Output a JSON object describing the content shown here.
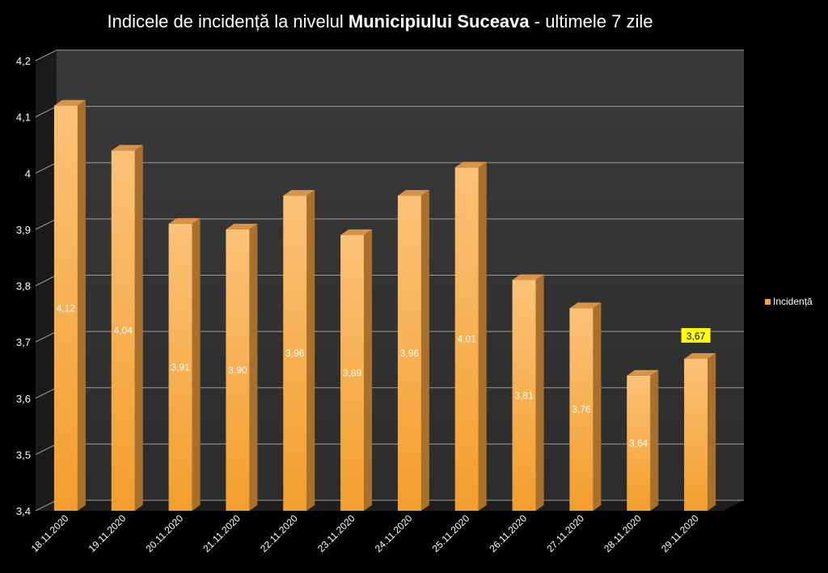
{
  "title": {
    "prefix": "Indicele de incidență la nivelul ",
    "bold": "Municipiului Suceava",
    "suffix": " - ultimele 7 zile"
  },
  "legend": {
    "label": "Incidență"
  },
  "colors": {
    "background": "#000000",
    "plot_back": "#333333",
    "bar_front": "#f8a73a",
    "bar_front_light": "#fcc278",
    "bar_side": "#a9702c",
    "bar_top": "#d79447",
    "highlight_label_bg": "#ffff00",
    "gridline": "#9a9a9a"
  },
  "chart_data": {
    "type": "bar",
    "title": "Indicele de incidență la nivelul Municipiului Suceava - ultimele 7 zile",
    "categories": [
      "18.11.2020",
      "19.11.2020",
      "20.11.2020",
      "21.11.2020",
      "22.11.2020",
      "23.11.2020",
      "24.11.2020",
      "25.11.2020",
      "26.11.2020",
      "27.11.2020",
      "28.11.2020",
      "29.11.2020"
    ],
    "series": [
      {
        "name": "Incidență",
        "values": [
          4.12,
          4.04,
          3.91,
          3.9,
          3.96,
          3.89,
          3.96,
          4.01,
          3.81,
          3.76,
          3.64,
          3.67
        ]
      }
    ],
    "value_labels": [
      "4,12",
      "4,04",
      "3,91",
      "3,90",
      "3,96",
      "3,89",
      "3,96",
      "4,01",
      "3,81",
      "3,76",
      "3,64",
      "3,67"
    ],
    "highlighted_index": 11,
    "ylim": [
      3.4,
      4.2
    ],
    "yticks": [
      3.4,
      3.5,
      3.6,
      3.7,
      3.8,
      3.9,
      4.0,
      4.1,
      4.2
    ],
    "ytick_labels": [
      "3,4",
      "3,5",
      "3,6",
      "3,7",
      "3,8",
      "3,9",
      "4",
      "4,1",
      "4,2"
    ],
    "grid": true,
    "legend_position": "right",
    "three_d": true
  }
}
